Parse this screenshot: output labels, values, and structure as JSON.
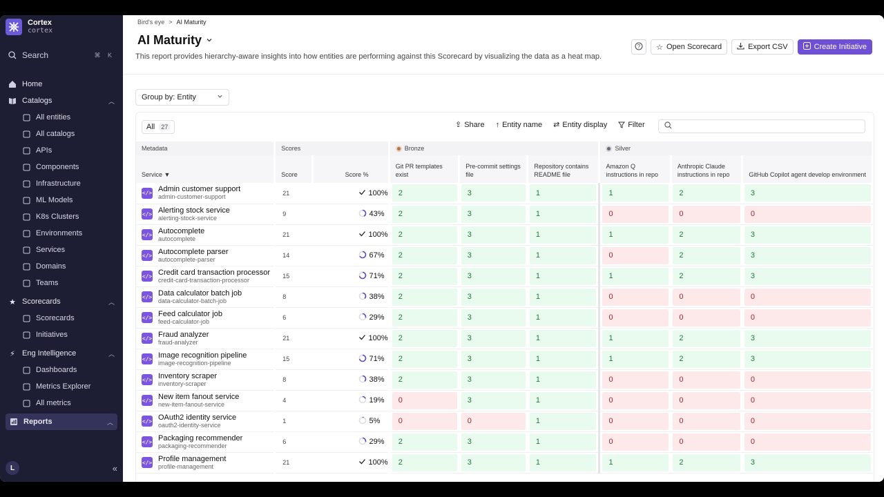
{
  "app": {
    "name": "Cortex",
    "workspace": "cortex"
  },
  "sidebar": {
    "search_label": "Search",
    "search_shortcut": "⌘ K",
    "home": "Home",
    "catalogs": {
      "label": "Catalogs",
      "items": [
        "All entities",
        "All catalogs",
        "APIs",
        "Components",
        "Infrastructure",
        "ML Models",
        "K8s Clusters",
        "Environments",
        "Services",
        "Domains",
        "Teams"
      ]
    },
    "scorecards": {
      "label": "Scorecards",
      "items": [
        "Scorecards",
        "Initiatives"
      ]
    },
    "eng": {
      "label": "Eng Intelligence",
      "items": [
        "Dashboards",
        "Metrics Explorer",
        "All metrics"
      ]
    },
    "reports": "Reports",
    "avatar": "L"
  },
  "breadcrumb": {
    "parent": "Bird's eye",
    "current": "AI Maturity"
  },
  "page": {
    "title": "AI Maturity",
    "description": "This report provides hierarchy-aware insights into how entities are performing against this Scorecard by visualizing the data as a heat map."
  },
  "actions": {
    "open_scorecard": "Open Scorecard",
    "export_csv": "Export CSV",
    "create_initiative": "Create Initiative"
  },
  "group_by": "Group by: Entity",
  "toolbar": {
    "all": "All",
    "count": "27",
    "share": "Share",
    "entity_name": "Entity name",
    "entity_display": "Entity display",
    "filter": "Filter"
  },
  "groups": {
    "metadata": "Metadata",
    "scores": "Scores",
    "bronze": "Bronze",
    "silver": "Silver"
  },
  "columns": {
    "service": "Service",
    "score": "Score",
    "score_pct": "Score %",
    "rules": [
      "Git PR templates exist",
      "Pre-commit settings file",
      "Repository contains README file",
      "Amazon Q instructions in repo",
      "Anthropic Claude instructions in repo",
      "GitHub Copilot agent develop environment"
    ]
  },
  "colors": {
    "brand": "#6e4fd6",
    "pass": "#e9faee",
    "fail": "#fde8ea",
    "bronze": "#b0764a",
    "silver": "#9a9aa4"
  },
  "rows": [
    {
      "name": "Admin customer support",
      "tag": "admin-customer-support",
      "score": "21",
      "pct": "100%",
      "p": 1.0,
      "vals": [
        "2",
        "3",
        "1",
        "1",
        "2",
        "3"
      ]
    },
    {
      "name": "Alerting stock service",
      "tag": "alerting-stock-service",
      "score": "9",
      "pct": "43%",
      "p": 0.43,
      "vals": [
        "2",
        "3",
        "1",
        "0",
        "0",
        "0"
      ]
    },
    {
      "name": "Autocomplete",
      "tag": "autocomplete",
      "score": "21",
      "pct": "100%",
      "p": 1.0,
      "vals": [
        "2",
        "3",
        "1",
        "1",
        "2",
        "3"
      ]
    },
    {
      "name": "Autocomplete parser",
      "tag": "autocomplete-parser",
      "score": "14",
      "pct": "67%",
      "p": 0.67,
      "vals": [
        "2",
        "3",
        "1",
        "0",
        "2",
        "3"
      ]
    },
    {
      "name": "Credit card transaction processor",
      "tag": "credit-card-transaction-processor",
      "score": "15",
      "pct": "71%",
      "p": 0.71,
      "vals": [
        "2",
        "3",
        "1",
        "1",
        "2",
        "3"
      ]
    },
    {
      "name": "Data calculator batch job",
      "tag": "data-calculator-batch-job",
      "score": "8",
      "pct": "38%",
      "p": 0.38,
      "vals": [
        "2",
        "3",
        "1",
        "0",
        "0",
        "0"
      ]
    },
    {
      "name": "Feed calculator job",
      "tag": "feed-calculator-job",
      "score": "6",
      "pct": "29%",
      "p": 0.29,
      "vals": [
        "2",
        "3",
        "1",
        "0",
        "0",
        "0"
      ]
    },
    {
      "name": "Fraud analyzer",
      "tag": "fraud-analyzer",
      "score": "21",
      "pct": "100%",
      "p": 1.0,
      "vals": [
        "2",
        "3",
        "1",
        "1",
        "2",
        "3"
      ]
    },
    {
      "name": "Image recognition pipeline",
      "tag": "image-recognition-pipeline",
      "score": "15",
      "pct": "71%",
      "p": 0.71,
      "vals": [
        "2",
        "3",
        "1",
        "1",
        "2",
        "3"
      ]
    },
    {
      "name": "Inventory scraper",
      "tag": "inventory-scraper",
      "score": "8",
      "pct": "38%",
      "p": 0.38,
      "vals": [
        "2",
        "3",
        "1",
        "0",
        "0",
        "0"
      ]
    },
    {
      "name": "New item fanout service",
      "tag": "new-item-fanout-service",
      "score": "4",
      "pct": "19%",
      "p": 0.19,
      "vals": [
        "0",
        "3",
        "1",
        "0",
        "0",
        "0"
      ]
    },
    {
      "name": "OAuth2 identity service",
      "tag": "oauth2-identity-service",
      "score": "1",
      "pct": "5%",
      "p": 0.05,
      "vals": [
        "0",
        "0",
        "1",
        "0",
        "0",
        "0"
      ]
    },
    {
      "name": "Packaging recommender",
      "tag": "packaging-recommender",
      "score": "6",
      "pct": "29%",
      "p": 0.29,
      "vals": [
        "2",
        "3",
        "1",
        "0",
        "0",
        "0"
      ]
    },
    {
      "name": "Profile management",
      "tag": "profile-management",
      "score": "21",
      "pct": "100%",
      "p": 1.0,
      "vals": [
        "2",
        "3",
        "1",
        "1",
        "2",
        "3"
      ]
    }
  ]
}
